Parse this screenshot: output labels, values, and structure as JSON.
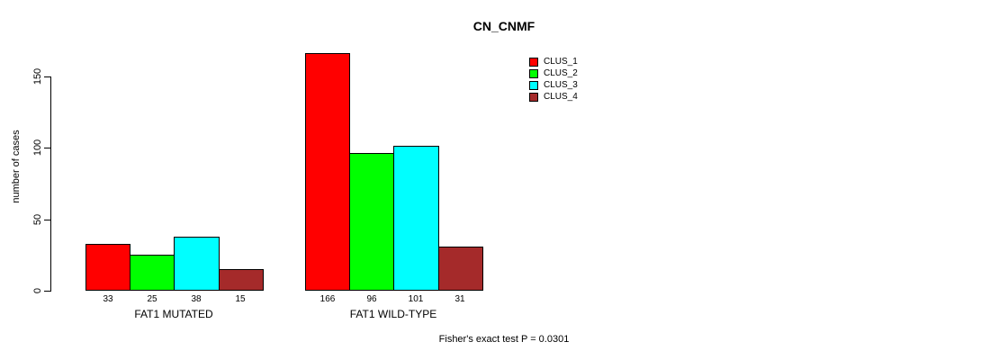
{
  "title": "CN_CNMF",
  "ylabel": "number of cases",
  "footer": "Fisher's exact test P = 0.0301",
  "chart_data": {
    "type": "bar",
    "title": "CN_CNMF",
    "xlabel": "",
    "ylabel": "number of cases",
    "categories": [
      "FAT1 MUTATED",
      "FAT1 WILD-TYPE"
    ],
    "series": [
      {
        "name": "CLUS_1",
        "color": "#ff0000",
        "values": [
          33,
          166
        ]
      },
      {
        "name": "CLUS_2",
        "color": "#00ff00",
        "values": [
          25,
          96
        ]
      },
      {
        "name": "CLUS_3",
        "color": "#00ffff",
        "values": [
          38,
          101
        ]
      },
      {
        "name": "CLUS_4",
        "color": "#a52a2a",
        "values": [
          15,
          31
        ]
      }
    ],
    "yticks": [
      0,
      50,
      100,
      150
    ],
    "ylim": [
      0,
      166
    ],
    "grid": false,
    "bar_value_labels": true,
    "legend_position": "top-right",
    "annotation": "Fisher's exact test P = 0.0301"
  }
}
